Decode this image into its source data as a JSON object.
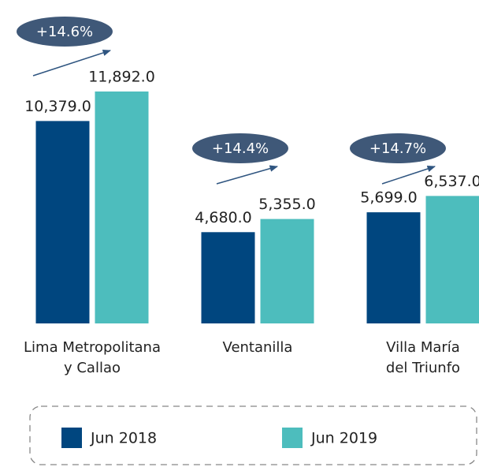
{
  "chart_data": {
    "type": "bar",
    "categories": [
      "Lima Metropolitana\ny Callao",
      "Ventanilla",
      "Villa María\ndel Triunfo"
    ],
    "series": [
      {
        "name": "Jun 2018",
        "color": "#00467f",
        "values": [
          10379,
          4680,
          5699
        ],
        "value_labels": [
          "10,379.0",
          "4,680.0",
          "5,699.0"
        ]
      },
      {
        "name": "Jun 2019",
        "color": "#4dbdbd",
        "values": [
          11892,
          5355,
          6537
        ],
        "value_labels": [
          "11,892.0",
          "5,355.0",
          "6,537.0"
        ]
      }
    ],
    "annotations": [
      "+14.6%",
      "+14.4%",
      "+14.7%"
    ]
  }
}
